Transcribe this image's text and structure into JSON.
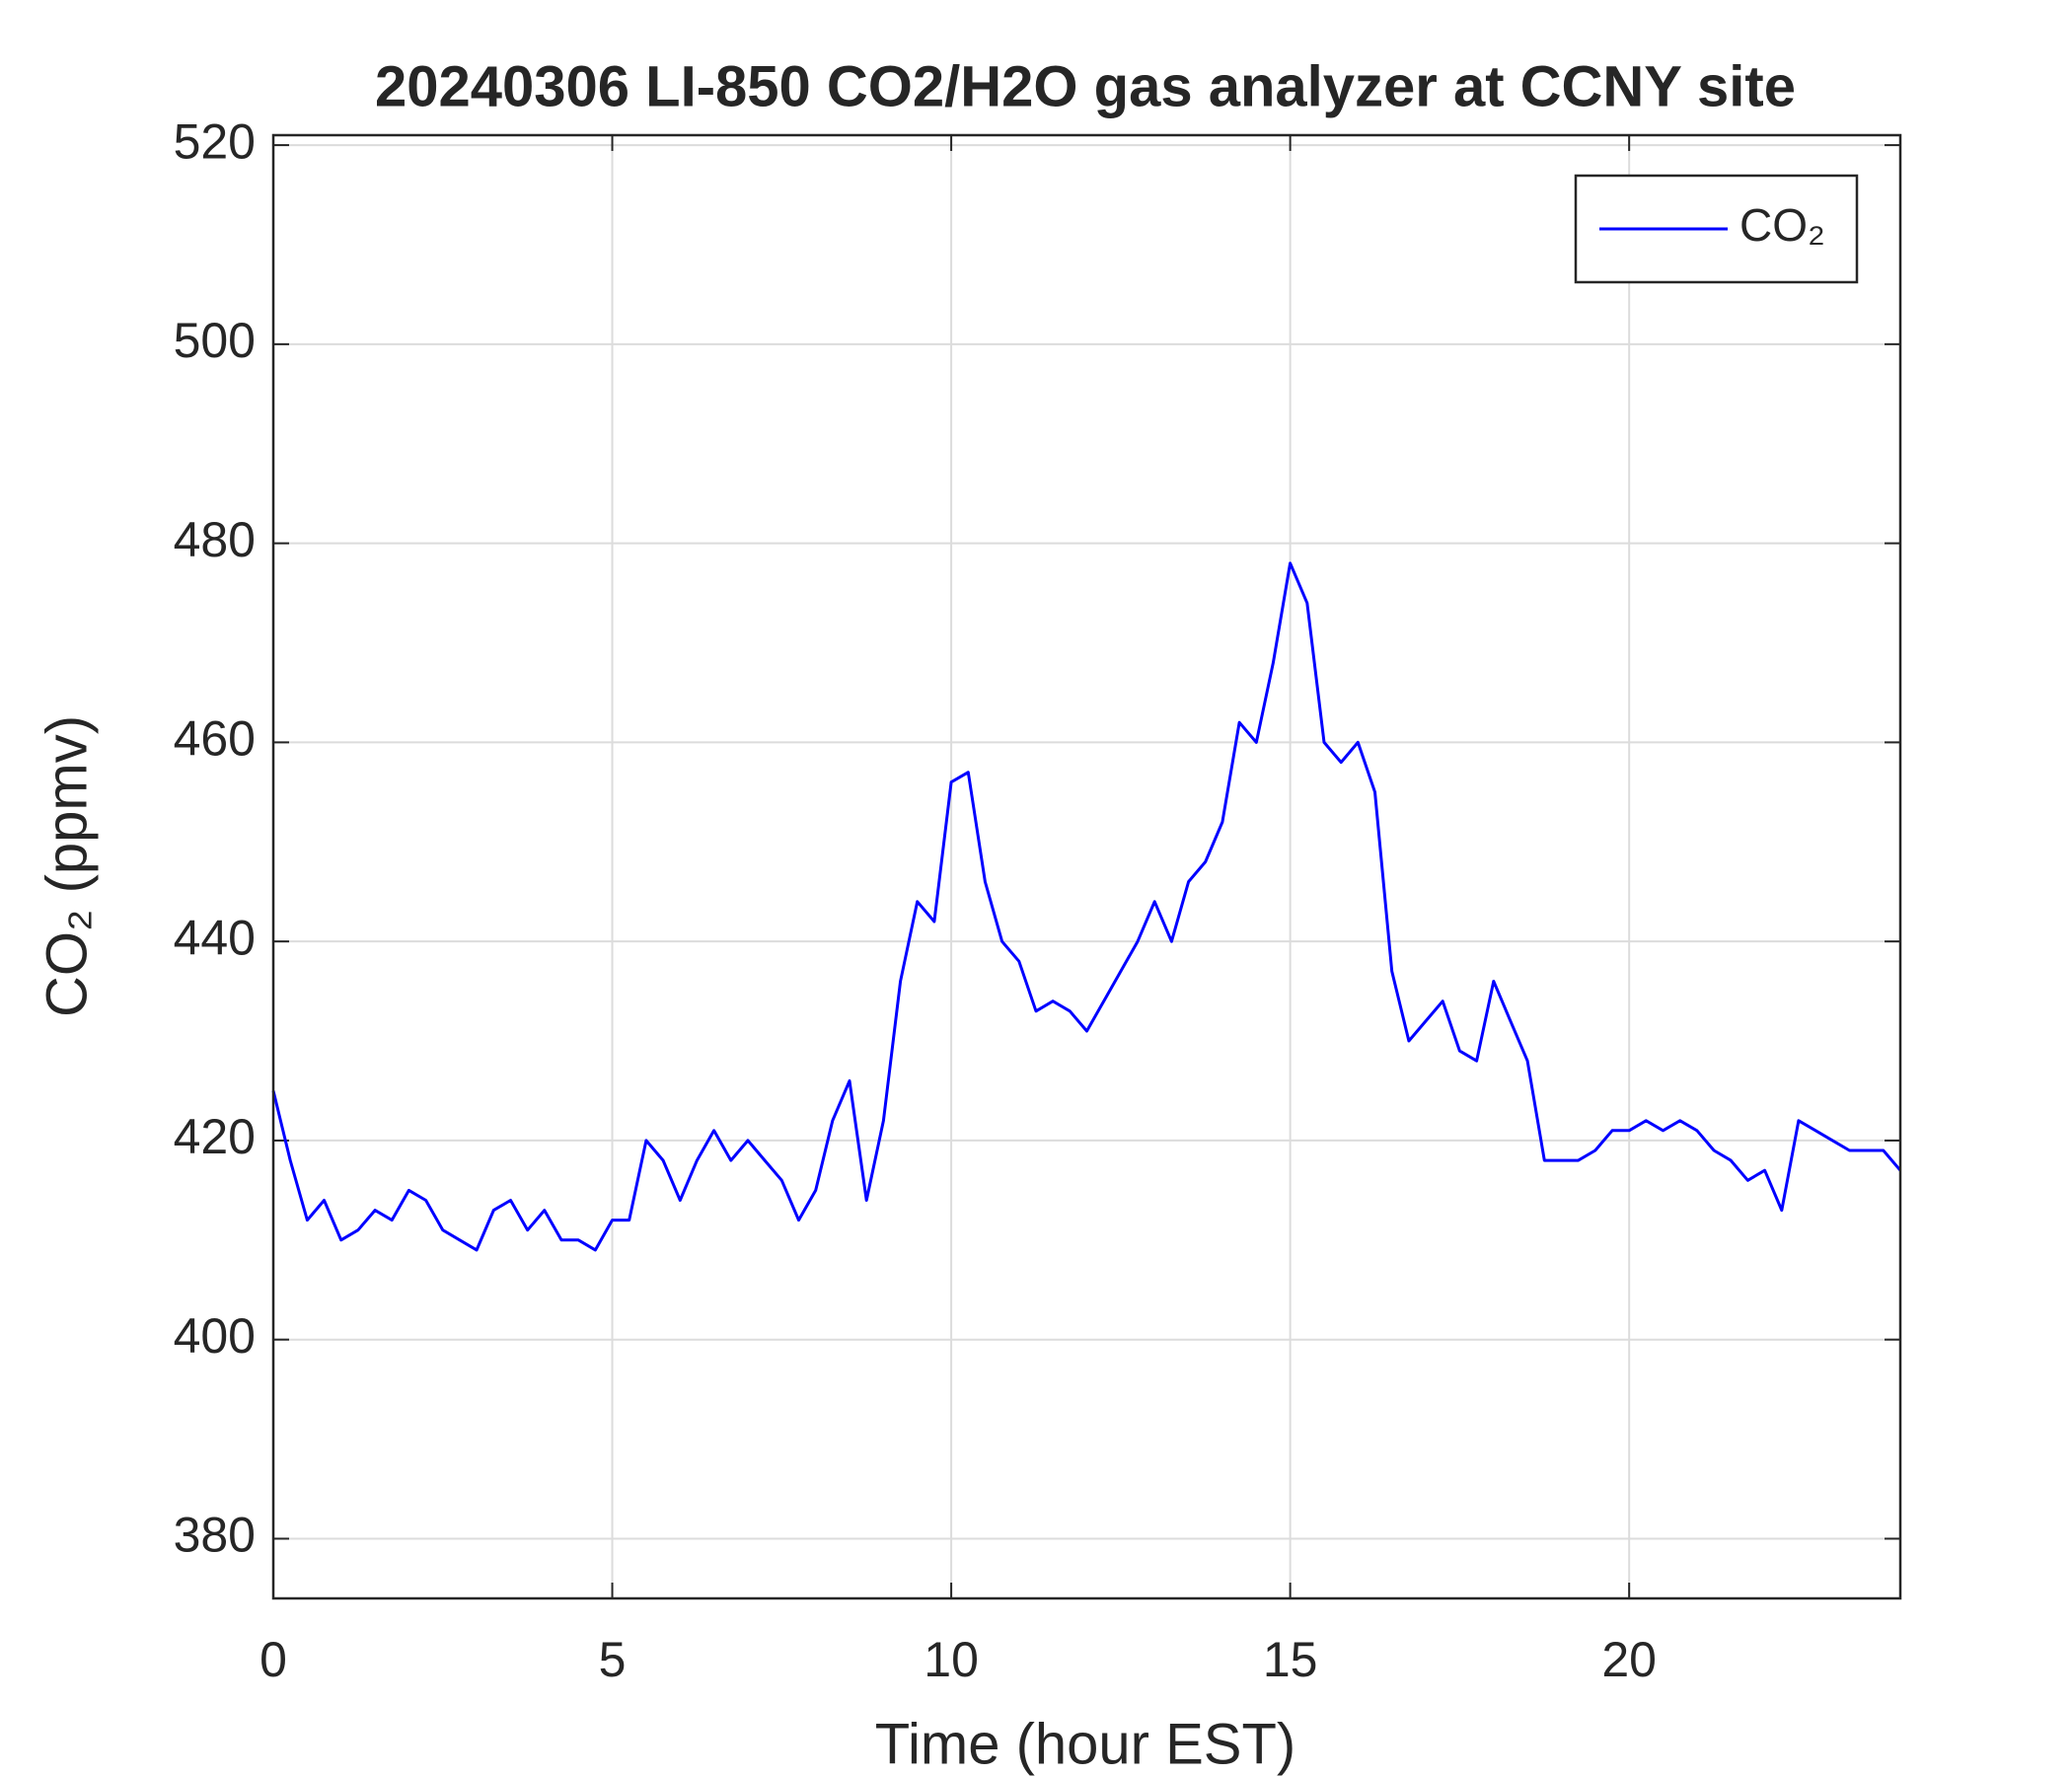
{
  "chart_data": {
    "type": "line",
    "title": "20240306 LI-850 CO2/H2O gas analyzer at CCNY site",
    "xlabel": "Time (hour EST)",
    "ylabel": "CO₂ (ppmv)",
    "x": [
      0,
      0.25,
      0.5,
      0.75,
      1,
      1.25,
      1.5,
      1.75,
      2,
      2.25,
      2.5,
      2.75,
      3,
      3.25,
      3.5,
      3.75,
      4,
      4.25,
      4.5,
      4.75,
      5,
      5.25,
      5.5,
      5.75,
      6,
      6.25,
      6.5,
      6.75,
      7,
      7.25,
      7.5,
      7.75,
      8,
      8.25,
      8.5,
      8.75,
      9,
      9.25,
      9.5,
      9.75,
      10,
      10.25,
      10.5,
      10.75,
      11,
      11.25,
      11.5,
      11.75,
      12,
      12.25,
      12.5,
      12.75,
      13,
      13.25,
      13.5,
      13.75,
      14,
      14.25,
      14.5,
      14.75,
      15,
      15.25,
      15.5,
      15.75,
      16,
      16.25,
      16.5,
      16.75,
      17,
      17.25,
      17.5,
      17.75,
      18,
      18.25,
      18.5,
      18.75,
      19,
      19.25,
      19.5,
      19.75,
      20,
      20.25,
      20.5,
      20.75,
      21,
      21.25,
      21.5,
      21.75,
      22,
      22.25,
      22.5,
      22.75,
      23,
      23.25,
      23.5,
      23.75,
      24
    ],
    "series": [
      {
        "name": "CO₂",
        "color": "#0000ff",
        "values": [
          425,
          418,
          412,
          414,
          410,
          411,
          413,
          412,
          415,
          414,
          411,
          410,
          409,
          413,
          414,
          411,
          413,
          410,
          410,
          409,
          412,
          412,
          420,
          418,
          414,
          418,
          421,
          418,
          420,
          418,
          416,
          412,
          415,
          422,
          426,
          414,
          422,
          436,
          444,
          442,
          456,
          457,
          446,
          440,
          438,
          433,
          434,
          433,
          431,
          434,
          437,
          440,
          444,
          440,
          446,
          448,
          452,
          462,
          460,
          468,
          478,
          474,
          460,
          458,
          460,
          455,
          437,
          430,
          432,
          434,
          429,
          428,
          436,
          432,
          428,
          418,
          418,
          418,
          419,
          421,
          421,
          422,
          421,
          422,
          421,
          419,
          418,
          416,
          417,
          413,
          422,
          421,
          420,
          419,
          419,
          419,
          417
        ]
      }
    ],
    "xlim": [
      0,
      24
    ],
    "ylim": [
      374,
      521
    ],
    "xticks": [
      0,
      5,
      10,
      15,
      20
    ],
    "yticks": [
      380,
      400,
      420,
      440,
      460,
      480,
      500,
      520
    ],
    "grid": true,
    "legend": "upper right"
  }
}
